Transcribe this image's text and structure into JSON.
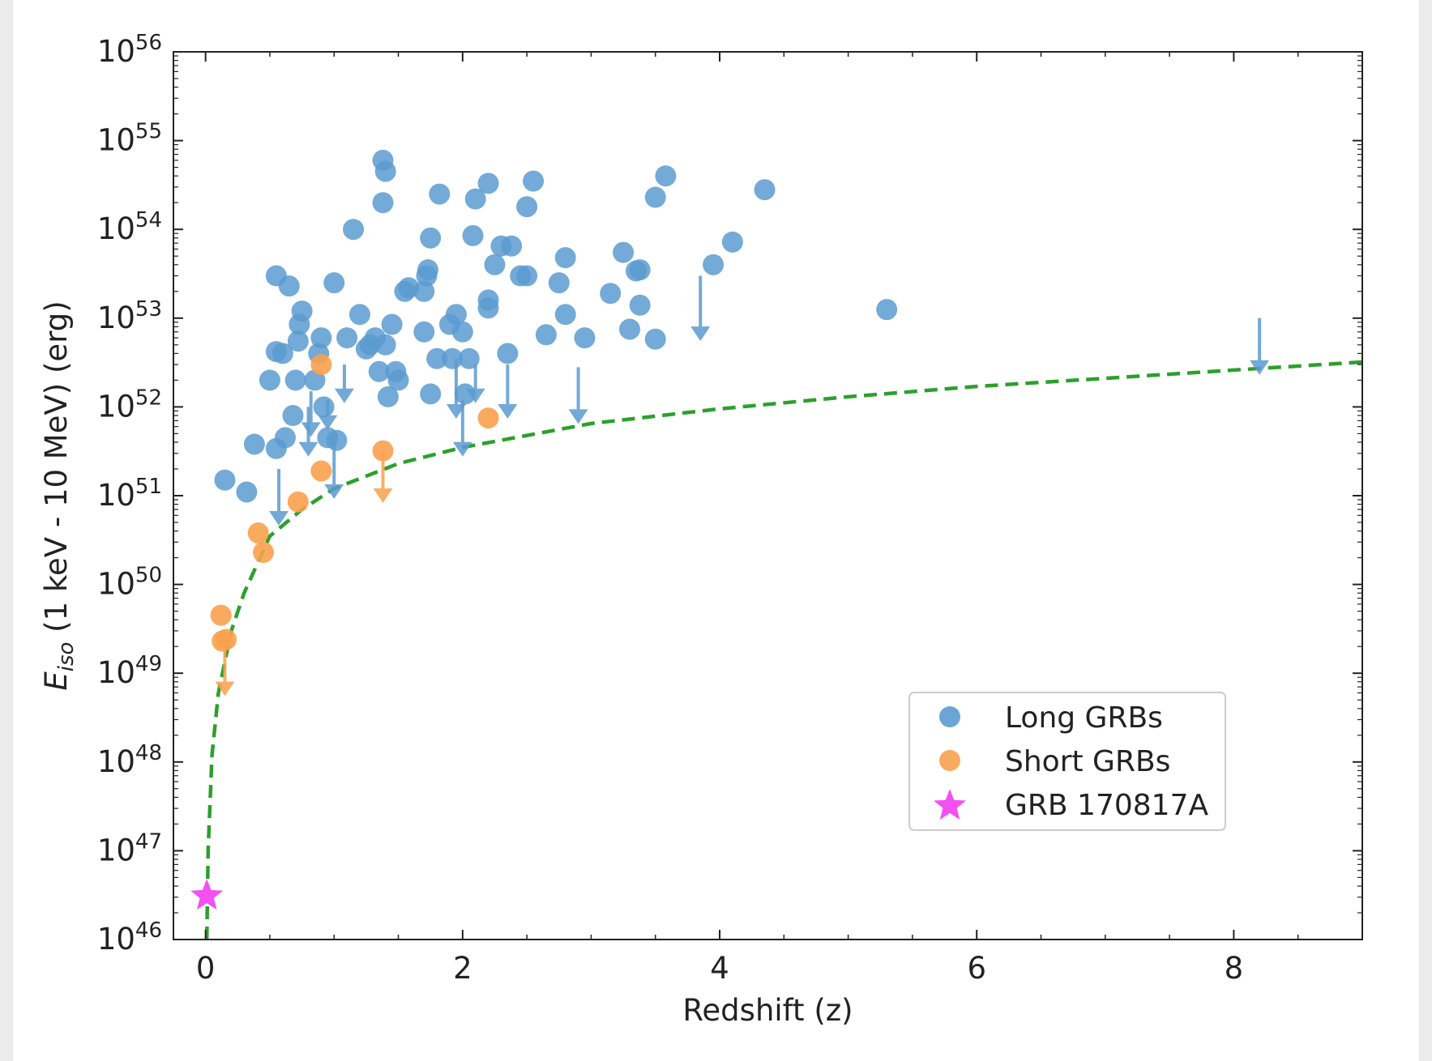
{
  "chart_data": {
    "type": "scatter",
    "xlabel": "Redshift (z)",
    "ylabel_main": "E",
    "ylabel_sub": "iso",
    "ylabel_rest": " (1 keV - 10 MeV) (erg)",
    "xlim": [
      -0.25,
      9.0
    ],
    "ylim_log10": [
      46,
      56
    ],
    "y_scale": "log",
    "x_ticks": [
      0,
      2,
      4,
      6,
      8
    ],
    "y_tick_exponents": [
      46,
      47,
      48,
      49,
      50,
      51,
      52,
      53,
      54,
      55,
      56
    ],
    "y_tick_base": "10",
    "grid": false,
    "legend_position": "lower-right",
    "legend": [
      {
        "label": "Long GRBs",
        "marker": "circle",
        "color": "#5b9bd0"
      },
      {
        "label": "Short GRBs",
        "marker": "circle",
        "color": "#f9a14e"
      },
      {
        "label": "GRB 170817A",
        "marker": "star",
        "color": "#f250f2"
      }
    ],
    "colors": {
      "long": "#5b9bd0",
      "short": "#f9a14e",
      "special": "#f250f2",
      "curve": "#2ca02c"
    },
    "series": [
      {
        "name": "Long GRBs",
        "points": [
          {
            "x": 0.15,
            "y": 1.5e+51
          },
          {
            "x": 0.32,
            "y": 1.1e+51
          },
          {
            "x": 0.38,
            "y": 3.8e+51
          },
          {
            "x": 0.55,
            "y": 3e+53
          },
          {
            "x": 0.65,
            "y": 2.3e+53
          },
          {
            "x": 0.55,
            "y": 4.2e+52
          },
          {
            "x": 0.6,
            "y": 4e+52
          },
          {
            "x": 0.75,
            "y": 1.2e+53
          },
          {
            "x": 0.73,
            "y": 8.5e+52
          },
          {
            "x": 0.72,
            "y": 5.5e+52
          },
          {
            "x": 0.5,
            "y": 2e+52
          },
          {
            "x": 0.68,
            "y": 8e+51
          },
          {
            "x": 0.62,
            "y": 4.5e+51
          },
          {
            "x": 0.55,
            "y": 3.4e+51
          },
          {
            "x": 0.7,
            "y": 2e+52
          },
          {
            "x": 0.85,
            "y": 2e+52
          },
          {
            "x": 0.9,
            "y": 6e+52
          },
          {
            "x": 0.88,
            "y": 4e+52
          },
          {
            "x": 0.92,
            "y": 1e+52
          },
          {
            "x": 0.95,
            "y": 4.5e+51
          },
          {
            "x": 1.02,
            "y": 4.2e+51
          },
          {
            "x": 1.0,
            "y": 2.5e+53
          },
          {
            "x": 1.15,
            "y": 1e+54
          },
          {
            "x": 1.1,
            "y": 6e+52
          },
          {
            "x": 1.2,
            "y": 1.1e+53
          },
          {
            "x": 1.25,
            "y": 4.5e+52
          },
          {
            "x": 1.28,
            "y": 5e+52
          },
          {
            "x": 1.32,
            "y": 6e+52
          },
          {
            "x": 1.35,
            "y": 2.5e+52
          },
          {
            "x": 1.38,
            "y": 6e+54
          },
          {
            "x": 1.4,
            "y": 4.5e+54
          },
          {
            "x": 1.38,
            "y": 2e+54
          },
          {
            "x": 1.4,
            "y": 5e+52
          },
          {
            "x": 1.45,
            "y": 8.5e+52
          },
          {
            "x": 1.42,
            "y": 1.3e+52
          },
          {
            "x": 1.5,
            "y": 2e+52
          },
          {
            "x": 1.48,
            "y": 2.5e+52
          },
          {
            "x": 1.55,
            "y": 2e+53
          },
          {
            "x": 1.58,
            "y": 2.2e+53
          },
          {
            "x": 1.7,
            "y": 2e+53
          },
          {
            "x": 1.72,
            "y": 3e+53
          },
          {
            "x": 1.73,
            "y": 3.5e+53
          },
          {
            "x": 1.75,
            "y": 8e+53
          },
          {
            "x": 1.7,
            "y": 7e+52
          },
          {
            "x": 1.75,
            "y": 1.4e+52
          },
          {
            "x": 1.8,
            "y": 3.5e+52
          },
          {
            "x": 1.82,
            "y": 2.5e+54
          },
          {
            "x": 1.9,
            "y": 8.5e+52
          },
          {
            "x": 1.92,
            "y": 3.5e+52
          },
          {
            "x": 1.95,
            "y": 1.1e+53
          },
          {
            "x": 2.0,
            "y": 7e+52
          },
          {
            "x": 2.02,
            "y": 1.4e+52
          },
          {
            "x": 2.05,
            "y": 3.5e+52
          },
          {
            "x": 2.08,
            "y": 8.5e+53
          },
          {
            "x": 2.1,
            "y": 2.2e+54
          },
          {
            "x": 2.2,
            "y": 3.3e+54
          },
          {
            "x": 2.2,
            "y": 1.6e+53
          },
          {
            "x": 2.2,
            "y": 1.3e+53
          },
          {
            "x": 2.25,
            "y": 4e+53
          },
          {
            "x": 2.3,
            "y": 6.5e+53
          },
          {
            "x": 2.38,
            "y": 6.5e+53
          },
          {
            "x": 2.35,
            "y": 4e+52
          },
          {
            "x": 2.45,
            "y": 3e+53
          },
          {
            "x": 2.5,
            "y": 3e+53
          },
          {
            "x": 2.5,
            "y": 1.8e+54
          },
          {
            "x": 2.55,
            "y": 3.5e+54
          },
          {
            "x": 2.65,
            "y": 6.5e+52
          },
          {
            "x": 2.75,
            "y": 2.5e+53
          },
          {
            "x": 2.8,
            "y": 4.8e+53
          },
          {
            "x": 2.8,
            "y": 1.1e+53
          },
          {
            "x": 2.95,
            "y": 6e+52
          },
          {
            "x": 3.15,
            "y": 1.9e+53
          },
          {
            "x": 3.25,
            "y": 5.5e+53
          },
          {
            "x": 3.3,
            "y": 7.5e+52
          },
          {
            "x": 3.35,
            "y": 3.4e+53
          },
          {
            "x": 3.38,
            "y": 3.5e+53
          },
          {
            "x": 3.38,
            "y": 1.4e+53
          },
          {
            "x": 3.5,
            "y": 5.8e+52
          },
          {
            "x": 3.5,
            "y": 2.3e+54
          },
          {
            "x": 3.58,
            "y": 4e+54
          },
          {
            "x": 3.95,
            "y": 4e+53
          },
          {
            "x": 4.1,
            "y": 7.2e+53
          },
          {
            "x": 4.35,
            "y": 2.8e+54
          },
          {
            "x": 5.3,
            "y": 1.25e+53
          }
        ],
        "upper_limits": [
          {
            "x": 0.57,
            "y": 2e+51,
            "to": 5e+50
          },
          {
            "x": 0.8,
            "y": 1e+52,
            "to": 3e+51
          },
          {
            "x": 0.82,
            "y": 1.5e+52,
            "to": 5e+51
          },
          {
            "x": 0.95,
            "y": 1.2e+52,
            "to": 6e+51
          },
          {
            "x": 1.0,
            "y": 4e+51,
            "to": 1e+51
          },
          {
            "x": 1.08,
            "y": 3e+52,
            "to": 1.2e+52
          },
          {
            "x": 1.95,
            "y": 3.5e+52,
            "to": 8e+51
          },
          {
            "x": 2.0,
            "y": 1.2e+52,
            "to": 3e+51
          },
          {
            "x": 2.1,
            "y": 3e+52,
            "to": 1.2e+52
          },
          {
            "x": 2.35,
            "y": 3e+52,
            "to": 8e+51
          },
          {
            "x": 2.9,
            "y": 2.8e+52,
            "to": 7e+51
          },
          {
            "x": 3.85,
            "y": 3e+53,
            "to": 6e+52
          },
          {
            "x": 8.2,
            "y": 1e+53,
            "to": 2.5e+52
          }
        ]
      },
      {
        "name": "Short GRBs",
        "points": [
          {
            "x": 0.12,
            "y": 4.5e+49
          },
          {
            "x": 0.13,
            "y": 2.3e+49
          },
          {
            "x": 0.16,
            "y": 2.4e+49
          },
          {
            "x": 0.41,
            "y": 3.8e+50
          },
          {
            "x": 0.45,
            "y": 2.3e+50
          },
          {
            "x": 0.72,
            "y": 8.5e+50
          },
          {
            "x": 0.9,
            "y": 1.9e+51
          },
          {
            "x": 0.9,
            "y": 3e+52
          },
          {
            "x": 1.38,
            "y": 3.2e+51
          },
          {
            "x": 2.2,
            "y": 7.5e+51
          }
        ],
        "upper_limits": [
          {
            "x": 0.15,
            "y": 2.3e+49,
            "to": 6e+48
          },
          {
            "x": 1.38,
            "y": 3.2e+51,
            "to": 9e+50
          }
        ]
      },
      {
        "name": "GRB 170817A",
        "points": [
          {
            "x": 0.0098,
            "y": 3.1e+46
          }
        ]
      }
    ],
    "sensitivity_curve": {
      "style": "dashed",
      "points": [
        {
          "x": 0.01,
          "y": 1e+46
        },
        {
          "x": 0.02,
          "y": 1e+47
        },
        {
          "x": 0.05,
          "y": 1.2e+48
        },
        {
          "x": 0.1,
          "y": 6e+48
        },
        {
          "x": 0.2,
          "y": 3e+49
        },
        {
          "x": 0.3,
          "y": 8e+49
        },
        {
          "x": 0.5,
          "y": 3.5e+50
        },
        {
          "x": 0.75,
          "y": 7e+50
        },
        {
          "x": 1.0,
          "y": 1.2e+51
        },
        {
          "x": 1.5,
          "y": 2.3e+51
        },
        {
          "x": 2.0,
          "y": 3.5e+51
        },
        {
          "x": 3.0,
          "y": 6.5e+51
        },
        {
          "x": 4.0,
          "y": 9.5e+51
        },
        {
          "x": 5.0,
          "y": 1.3e+52
        },
        {
          "x": 6.0,
          "y": 1.7e+52
        },
        {
          "x": 7.0,
          "y": 2.1e+52
        },
        {
          "x": 8.0,
          "y": 2.6e+52
        },
        {
          "x": 9.0,
          "y": 3.2e+52
        }
      ]
    }
  }
}
